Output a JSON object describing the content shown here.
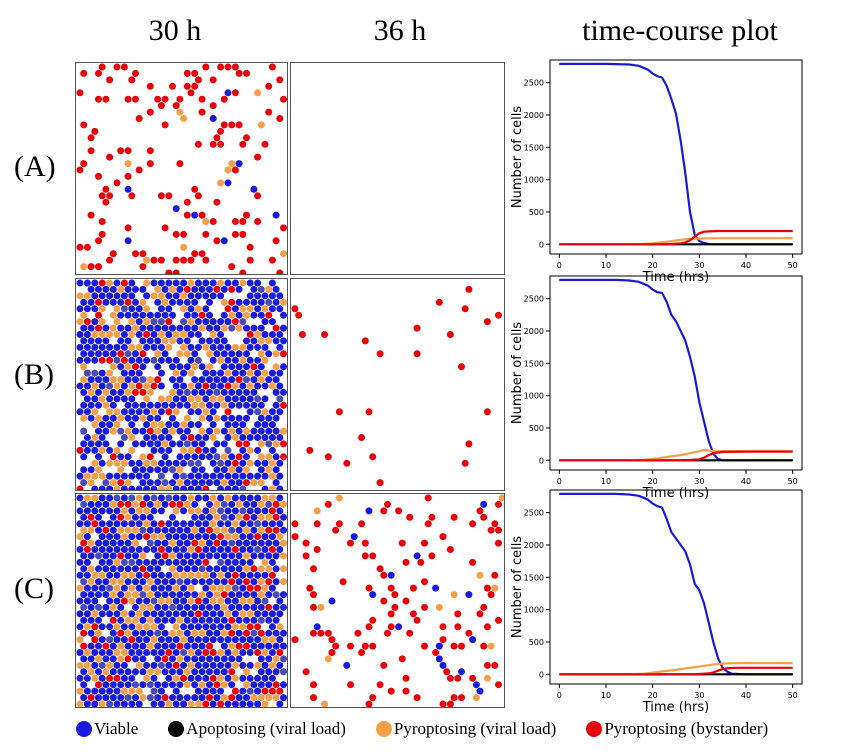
{
  "titles": {
    "col1": "30 h",
    "col2": "36 h",
    "col3": "time-course plot"
  },
  "rows": [
    {
      "label": "(A)",
      "density30": 0.35,
      "density36": 0.0
    },
    {
      "label": "(B)",
      "density30": 0.85,
      "density36": 0.02
    },
    {
      "label": "(C)",
      "density30": 0.95,
      "density36": 0.25
    }
  ],
  "legend": [
    {
      "label": "Viable",
      "color": "#1a1adc"
    },
    {
      "label": "Apoptosing (viral load)",
      "color": "#000000"
    },
    {
      "label": "Pyroptosing (viral load)",
      "color": "#f4a04a"
    },
    {
      "label": "Pyroptosing (bystander)",
      "color": "#e8000b"
    }
  ],
  "colors": {
    "viable": "#1a1adc",
    "apoptosing": "#000000",
    "pyroptosing_viral": "#f4a04a",
    "pyroptosing_bystander": "#e8000b"
  },
  "chart_data": [
    {
      "type": "line",
      "panel": "(A)",
      "xlabel": "Time (hrs)",
      "ylabel": "Number of cells",
      "xlim": [
        -2,
        52
      ],
      "ylim": [
        -150,
        2850
      ],
      "xticks": [
        0,
        10,
        20,
        30,
        40,
        50
      ],
      "yticks": [
        0,
        500,
        1000,
        1500,
        2000,
        2500
      ],
      "series": [
        {
          "name": "Viable",
          "color": "#1a1adc",
          "x": [
            0,
            10,
            15,
            17,
            19,
            20,
            21,
            22,
            23,
            24,
            25,
            26,
            27,
            28,
            29,
            30,
            31,
            32,
            33,
            35,
            40,
            50
          ],
          "y": [
            2790,
            2790,
            2780,
            2760,
            2700,
            2640,
            2600,
            2580,
            2450,
            2250,
            2020,
            1600,
            1100,
            500,
            150,
            50,
            20,
            5,
            0,
            0,
            0,
            0
          ]
        },
        {
          "name": "Apoptosing (viral load)",
          "color": "#000000",
          "x": [
            0,
            50
          ],
          "y": [
            0,
            0
          ]
        },
        {
          "name": "Pyroptosing (viral load)",
          "color": "#f4a04a",
          "x": [
            0,
            15,
            18,
            20,
            22,
            24,
            26,
            28,
            30,
            35,
            40,
            50
          ],
          "y": [
            0,
            0,
            5,
            15,
            30,
            50,
            70,
            85,
            90,
            95,
            95,
            95
          ]
        },
        {
          "name": "Pyroptosing (bystander)",
          "color": "#e8000b",
          "x": [
            0,
            20,
            24,
            26,
            27,
            28,
            29,
            30,
            31,
            32,
            34,
            40,
            50
          ],
          "y": [
            0,
            0,
            5,
            15,
            30,
            60,
            120,
            170,
            195,
            200,
            205,
            205,
            205
          ]
        }
      ]
    },
    {
      "type": "line",
      "panel": "(B)",
      "xlabel": "Time (hrs)",
      "ylabel": "Number of cells",
      "xlim": [
        -2,
        52
      ],
      "ylim": [
        -150,
        2850
      ],
      "xticks": [
        0,
        10,
        20,
        30,
        40,
        50
      ],
      "yticks": [
        0,
        500,
        1000,
        1500,
        2000,
        2500
      ],
      "series": [
        {
          "name": "Viable",
          "color": "#1a1adc",
          "x": [
            0,
            12,
            15,
            17,
            19,
            20,
            21,
            22,
            23,
            24,
            25,
            26,
            27,
            28,
            29,
            30,
            31,
            32,
            33,
            34,
            35,
            40,
            50
          ],
          "y": [
            2790,
            2790,
            2780,
            2760,
            2700,
            2640,
            2600,
            2590,
            2450,
            2250,
            2150,
            2000,
            1850,
            1600,
            1300,
            900,
            600,
            300,
            100,
            20,
            0,
            0,
            0
          ]
        },
        {
          "name": "Apoptosing (viral load)",
          "color": "#000000",
          "x": [
            0,
            50
          ],
          "y": [
            0,
            0
          ]
        },
        {
          "name": "Pyroptosing (viral load)",
          "color": "#f4a04a",
          "x": [
            0,
            14,
            18,
            20,
            22,
            24,
            26,
            28,
            30,
            31,
            32,
            33,
            35,
            40,
            50
          ],
          "y": [
            0,
            0,
            10,
            20,
            40,
            60,
            80,
            110,
            140,
            160,
            150,
            140,
            140,
            140,
            140
          ]
        },
        {
          "name": "Pyroptosing (bystander)",
          "color": "#e8000b",
          "x": [
            0,
            25,
            28,
            30,
            31,
            32,
            33,
            35,
            40,
            50
          ],
          "y": [
            0,
            0,
            5,
            15,
            40,
            80,
            110,
            130,
            135,
            135
          ]
        }
      ]
    },
    {
      "type": "line",
      "panel": "(C)",
      "xlabel": "Time (hrs)",
      "ylabel": "Number of cells",
      "xlim": [
        -2,
        52
      ],
      "ylim": [
        -150,
        2850
      ],
      "xticks": [
        0,
        10,
        20,
        30,
        40,
        50
      ],
      "yticks": [
        0,
        500,
        1000,
        1500,
        2000,
        2500
      ],
      "series": [
        {
          "name": "Viable",
          "color": "#1a1adc",
          "x": [
            0,
            12,
            15,
            17,
            19,
            20,
            21,
            22,
            23,
            24,
            25,
            26,
            27,
            28,
            29,
            30,
            31,
            32,
            33,
            34,
            35,
            36,
            37,
            40,
            50
          ],
          "y": [
            2790,
            2790,
            2780,
            2760,
            2700,
            2640,
            2600,
            2580,
            2400,
            2200,
            2100,
            2000,
            1900,
            1700,
            1400,
            1300,
            1100,
            800,
            500,
            250,
            100,
            40,
            10,
            0,
            0
          ]
        },
        {
          "name": "Apoptosing (viral load)",
          "color": "#000000",
          "x": [
            0,
            50
          ],
          "y": [
            0,
            0
          ]
        },
        {
          "name": "Pyroptosing (viral load)",
          "color": "#f4a04a",
          "x": [
            0,
            14,
            18,
            20,
            22,
            24,
            26,
            28,
            30,
            32,
            34,
            36,
            40,
            50
          ],
          "y": [
            0,
            0,
            10,
            25,
            45,
            60,
            80,
            100,
            120,
            140,
            160,
            170,
            175,
            175
          ]
        },
        {
          "name": "Pyroptosing (bystander)",
          "color": "#e8000b",
          "x": [
            0,
            28,
            30,
            32,
            33,
            34,
            35,
            36,
            38,
            40,
            50
          ],
          "y": [
            0,
            0,
            5,
            15,
            30,
            55,
            80,
            95,
            100,
            100,
            100
          ]
        }
      ]
    }
  ]
}
